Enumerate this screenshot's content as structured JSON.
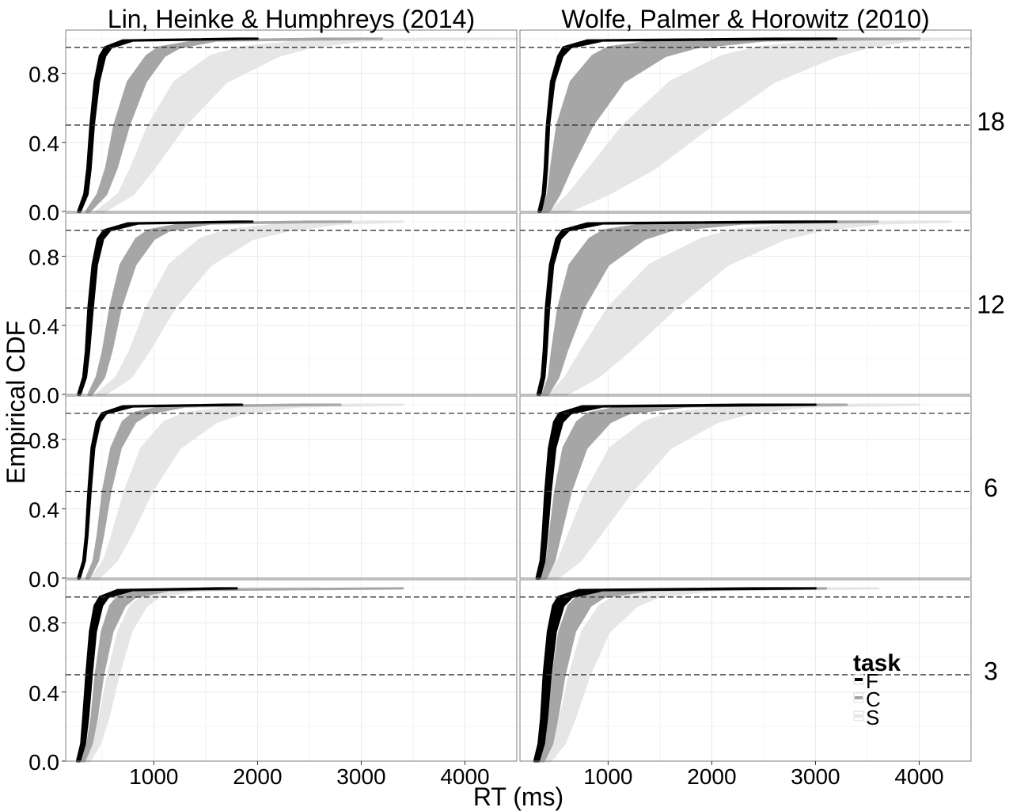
{
  "chart_data": {
    "type": "line",
    "xlabel": "RT (ms)",
    "ylabel": "Empirical CDF",
    "xlim": [
      150,
      4500
    ],
    "ylim": [
      0,
      1.05
    ],
    "x_ticks": [
      1000,
      2000,
      3000,
      4000
    ],
    "x_tick_labels": [
      "1000",
      "2000",
      "3000",
      "4000"
    ],
    "y_ticks": [
      0.0,
      0.4,
      0.8
    ],
    "y_tick_labels": [
      "0.0",
      "0.4",
      "0.8"
    ],
    "reference_lines": [
      0.5,
      0.95
    ],
    "grid": true,
    "legend": {
      "title": "task",
      "placement": "bottom-right",
      "items": [
        {
          "label": "F",
          "color": "#000000"
        },
        {
          "label": "C",
          "color": "#a6a6a6"
        },
        {
          "label": "S",
          "color": "#e6e6e6"
        }
      ]
    },
    "columns": [
      {
        "key": "lin",
        "title": "Lin, Heinke & Humphreys (2014)"
      },
      {
        "key": "wolfe",
        "title": "Wolfe, Palmer & Horowitz (2010)"
      }
    ],
    "rows": [
      {
        "key": "18",
        "label": "18"
      },
      {
        "key": "12",
        "label": "12"
      },
      {
        "key": "6",
        "label": "6"
      },
      {
        "key": "3",
        "label": "3"
      }
    ],
    "series_colors": {
      "F": "#000000",
      "C": "#a6a6a6",
      "S": "#e6e6e6"
    },
    "band_points": [
      0.0,
      0.1,
      0.25,
      0.5,
      0.75,
      0.9,
      0.95,
      0.99,
      1.0
    ],
    "panels": [
      {
        "col": "lin",
        "row": "18",
        "series": [
          {
            "name": "F",
            "lo": [
              270,
              330,
              360,
              390,
              430,
              480,
              530,
              700,
              1800
            ],
            "hi": [
              290,
              360,
              390,
              420,
              470,
              530,
              590,
              800,
              2000
            ]
          },
          {
            "name": "C",
            "lo": [
              350,
              460,
              540,
              620,
              750,
              930,
              1050,
              1450,
              2600
            ],
            "hi": [
              380,
              540,
              640,
              760,
              920,
              1100,
              1250,
              1600,
              3200
            ]
          },
          {
            "name": "S",
            "lo": [
              450,
              660,
              780,
              950,
              1200,
              1550,
              1850,
              2500,
              3600
            ],
            "hi": [
              520,
              800,
              1000,
              1300,
              1700,
              2200,
              2500,
              3000,
              4500
            ]
          }
        ]
      },
      {
        "col": "wolfe",
        "row": "18",
        "series": [
          {
            "name": "F",
            "lo": [
              330,
              370,
              390,
              410,
              450,
              520,
              570,
              800,
              2600
            ],
            "hi": [
              350,
              390,
              410,
              430,
              480,
              560,
              640,
              950,
              3200
            ]
          },
          {
            "name": "C",
            "lo": [
              370,
              420,
              450,
              510,
              640,
              850,
              1000,
              1500,
              3000
            ],
            "hi": [
              430,
              530,
              640,
              850,
              1150,
              1550,
              1850,
              2500,
              4000
            ]
          },
          {
            "name": "S",
            "lo": [
              450,
              620,
              820,
              1150,
              1600,
              2100,
              2450,
              3100,
              4000
            ],
            "hi": [
              620,
              1000,
              1450,
              2000,
              2600,
              3200,
              3500,
              3900,
              4500
            ]
          }
        ]
      },
      {
        "col": "lin",
        "row": "12",
        "series": [
          {
            "name": "F",
            "lo": [
              270,
              320,
              345,
              370,
              410,
              460,
              520,
              750,
              1800
            ],
            "hi": [
              290,
              345,
              375,
              410,
              450,
              510,
              580,
              850,
              1950
            ]
          },
          {
            "name": "C",
            "lo": [
              370,
              450,
              510,
              580,
              680,
              830,
              950,
              1300,
              2500
            ],
            "hi": [
              400,
              520,
              590,
              680,
              820,
              1000,
              1150,
              1550,
              2900
            ]
          },
          {
            "name": "S",
            "lo": [
              450,
              640,
              770,
              930,
              1150,
              1450,
              1700,
              2300,
              3100
            ],
            "hi": [
              530,
              780,
              950,
              1200,
              1550,
              1950,
              2300,
              2800,
              3400
            ]
          }
        ]
      },
      {
        "col": "wolfe",
        "row": "12",
        "series": [
          {
            "name": "F",
            "lo": [
              320,
              360,
              380,
              400,
              440,
              500,
              560,
              800,
              2600
            ],
            "hi": [
              345,
              385,
              405,
              430,
              470,
              540,
              620,
              950,
              3200
            ]
          },
          {
            "name": "C",
            "lo": [
              370,
              430,
              460,
              520,
              630,
              820,
              960,
              1400,
              2900
            ],
            "hi": [
              420,
              520,
              600,
              760,
              1000,
              1350,
              1600,
              2300,
              3600
            ]
          },
          {
            "name": "S",
            "lo": [
              440,
              590,
              740,
              1000,
              1400,
              1900,
              2200,
              2900,
              3800
            ],
            "hi": [
              600,
              900,
              1200,
              1650,
              2150,
              2700,
              3050,
              3600,
              4300
            ]
          }
        ]
      },
      {
        "col": "lin",
        "row": "6",
        "series": [
          {
            "name": "F",
            "lo": [
              270,
              320,
              345,
              370,
              400,
              450,
              500,
              700,
              1700
            ],
            "hi": [
              285,
              335,
              360,
              390,
              425,
              480,
              540,
              800,
              1850
            ]
          },
          {
            "name": "C",
            "lo": [
              350,
              420,
              460,
              510,
              590,
              700,
              800,
              1100,
              2400
            ],
            "hi": [
              375,
              460,
              510,
              580,
              680,
              820,
              950,
              1300,
              2800
            ]
          },
          {
            "name": "S",
            "lo": [
              400,
              520,
              600,
              720,
              880,
              1100,
              1300,
              1800,
              3000
            ],
            "hi": [
              470,
              640,
              780,
              980,
              1250,
              1600,
              1850,
              2400,
              3400
            ]
          }
        ]
      },
      {
        "col": "wolfe",
        "row": "6",
        "series": [
          {
            "name": "F",
            "lo": [
              310,
              350,
              370,
              395,
              430,
              480,
              530,
              750,
              2300
            ],
            "hi": [
              340,
              385,
              410,
              445,
              490,
              560,
              640,
              950,
              3000
            ]
          },
          {
            "name": "C",
            "lo": [
              350,
              410,
              440,
              490,
              570,
              700,
              810,
              1150,
              2700
            ],
            "hi": [
              400,
              480,
              540,
              640,
              790,
              1020,
              1200,
              1750,
              3300
            ]
          },
          {
            "name": "S",
            "lo": [
              400,
              520,
              620,
              790,
              1020,
              1350,
              1600,
              2200,
              3500
            ],
            "hi": [
              510,
              730,
              920,
              1230,
              1600,
              2050,
              2350,
              2900,
              4000
            ]
          }
        ]
      },
      {
        "col": "lin",
        "row": "3",
        "series": [
          {
            "name": "F",
            "lo": [
              260,
              300,
              320,
              350,
              385,
              430,
              480,
              650,
              1600
            ],
            "hi": [
              285,
              335,
              365,
              400,
              440,
              500,
              560,
              800,
              1800
            ]
          },
          {
            "name": "C",
            "lo": [
              300,
              360,
              400,
              440,
              500,
              580,
              650,
              900,
              3400
            ],
            "hi": [
              330,
              400,
              450,
              510,
              600,
              720,
              820,
              1150,
              3400
            ]
          },
          {
            "name": "S",
            "lo": [
              340,
              420,
              480,
              560,
              660,
              780,
              880,
              1150,
              2000
            ],
            "hi": [
              380,
              480,
              560,
              660,
              780,
              930,
              1050,
              1400,
              2600
            ]
          }
        ]
      },
      {
        "col": "wolfe",
        "row": "3",
        "series": [
          {
            "name": "F",
            "lo": [
              290,
              330,
              355,
              380,
              420,
              470,
              520,
              720,
              2400
            ],
            "hi": [
              330,
              380,
              410,
              445,
              495,
              570,
              650,
              950,
              3000
            ]
          },
          {
            "name": "C",
            "lo": [
              340,
              400,
              430,
              470,
              530,
              620,
              700,
              980,
              2600
            ],
            "hi": [
              380,
              460,
              510,
              580,
              680,
              830,
              960,
              1400,
              3100
            ]
          },
          {
            "name": "S",
            "lo": [
              380,
              470,
              540,
              630,
              750,
              920,
              1060,
              1450,
              3000
            ],
            "hi": [
              440,
              580,
              680,
              820,
              1010,
              1280,
              1480,
              2000,
              3600
            ]
          }
        ]
      }
    ]
  }
}
